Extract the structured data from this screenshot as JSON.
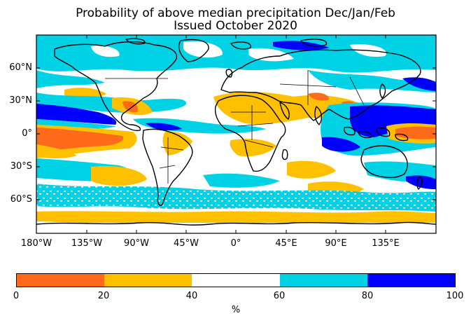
{
  "title": {
    "line1": "Probability of above median precipitation Dec/Jan/Feb",
    "line2": "Issued October 2020"
  },
  "map": {
    "projection": "equirectangular",
    "lon_range": [
      -180,
      180
    ],
    "lat_range": [
      -90,
      90
    ],
    "lat_labels": [
      "60°N",
      "30°N",
      "0°",
      "30°S",
      "60°S"
    ],
    "lon_labels": [
      "180°W",
      "135°W",
      "90°W",
      "45°W",
      "0°",
      "45°E",
      "90°E",
      "135°E"
    ]
  },
  "colorbar": {
    "unit": "%",
    "ticks": [
      "0",
      "20",
      "40",
      "60",
      "80",
      "100"
    ],
    "bins": [
      {
        "range": [
          0,
          20
        ],
        "color": "#ff6b1a"
      },
      {
        "range": [
          20,
          40
        ],
        "color": "#ffc000"
      },
      {
        "range": [
          40,
          60
        ],
        "color": "#ffffff"
      },
      {
        "range": [
          60,
          80
        ],
        "color": "#00d2e6"
      },
      {
        "range": [
          80,
          100
        ],
        "color": "#0000ff"
      }
    ]
  }
}
